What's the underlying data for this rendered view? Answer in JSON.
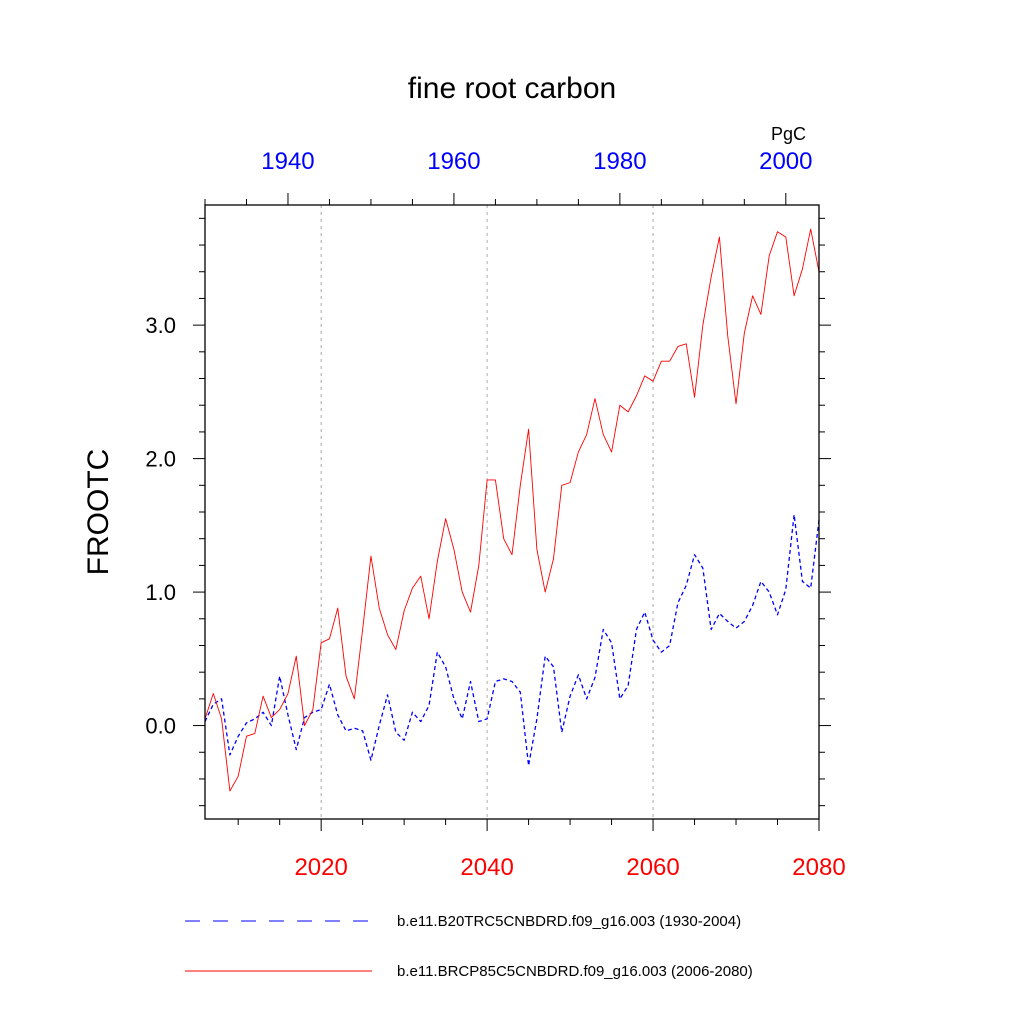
{
  "chart_data": {
    "type": "line",
    "title": "fine root carbon",
    "units": "PgC",
    "ylabel": "FROOTC",
    "ylim": [
      -0.7,
      3.9
    ],
    "y_ticks": [
      0.0,
      1.0,
      2.0,
      3.0
    ],
    "y_tick_labels": [
      "0.0",
      "1.0",
      "2.0",
      "3.0"
    ],
    "x_bottom": {
      "range": [
        2006,
        2080
      ],
      "ticks": [
        2020,
        2040,
        2060,
        2080
      ],
      "tick_labels": [
        "2020",
        "2040",
        "2060",
        "2080"
      ],
      "color": "#ff0000"
    },
    "x_top": {
      "range": [
        1930,
        2004
      ],
      "ticks": [
        1940,
        1960,
        1980,
        2000
      ],
      "tick_labels": [
        "1940",
        "1960",
        "1980",
        "2000"
      ],
      "color": "#0000ff"
    },
    "gridlines_x": [
      2020,
      2040,
      2060
    ],
    "series": [
      {
        "name": "b.e11.B20TRC5CNBDRD.f09_g16.003 (1930-2004)",
        "axis": "top",
        "x_start": 1930,
        "color": "#0000ff",
        "style": "dashed",
        "values": [
          0.03,
          0.16,
          0.2,
          -0.22,
          -0.08,
          0.02,
          0.05,
          0.1,
          0.0,
          0.37,
          0.08,
          -0.18,
          0.06,
          0.1,
          0.12,
          0.31,
          0.08,
          -0.04,
          -0.02,
          -0.04,
          -0.26,
          0.0,
          0.23,
          -0.05,
          -0.11,
          0.1,
          0.03,
          0.15,
          0.55,
          0.44,
          0.2,
          0.05,
          0.33,
          0.03,
          0.05,
          0.33,
          0.35,
          0.33,
          0.25,
          -0.3,
          0.05,
          0.52,
          0.44,
          -0.05,
          0.22,
          0.38,
          0.2,
          0.36,
          0.72,
          0.62,
          0.2,
          0.3,
          0.72,
          0.85,
          0.64,
          0.55,
          0.6,
          0.92,
          1.05,
          1.28,
          1.18,
          0.72,
          0.84,
          0.78,
          0.73,
          0.78,
          0.9,
          1.08,
          1.0,
          0.83,
          1.02,
          1.58,
          1.08,
          1.03,
          1.54
        ]
      },
      {
        "name": "b.e11.BRCP85C5CNBDRD.f09_g16.003 (2006-2080)",
        "axis": "bottom",
        "x_start": 2006,
        "color": "#ff0000",
        "style": "solid",
        "values": [
          0.05,
          0.24,
          0.05,
          -0.49,
          -0.38,
          -0.08,
          -0.06,
          0.22,
          0.06,
          0.12,
          0.24,
          0.52,
          0.0,
          0.12,
          0.62,
          0.65,
          0.88,
          0.37,
          0.2,
          0.72,
          1.27,
          0.88,
          0.68,
          0.57,
          0.86,
          1.03,
          1.12,
          0.8,
          1.23,
          1.55,
          1.32,
          1.0,
          0.85,
          1.2,
          1.84,
          1.84,
          1.4,
          1.28,
          1.8,
          2.22,
          1.32,
          1.0,
          1.25,
          1.8,
          1.82,
          2.05,
          2.18,
          2.45,
          2.18,
          2.05,
          2.4,
          2.35,
          2.47,
          2.62,
          2.58,
          2.73,
          2.73,
          2.84,
          2.86,
          2.46,
          3.0,
          3.36,
          3.66,
          2.92,
          2.41,
          2.94,
          3.22,
          3.08,
          3.52,
          3.7,
          3.66,
          3.22,
          3.42,
          3.72,
          3.4
        ]
      }
    ]
  },
  "legend": [
    {
      "label": "b.e11.B20TRC5CNBDRD.f09_g16.003 (1930-2004)",
      "color": "#0000ff",
      "style": "dashed"
    },
    {
      "label": "b.e11.BRCP85C5CNBDRD.f09_g16.003 (2006-2080)",
      "color": "#ff0000",
      "style": "solid"
    }
  ]
}
